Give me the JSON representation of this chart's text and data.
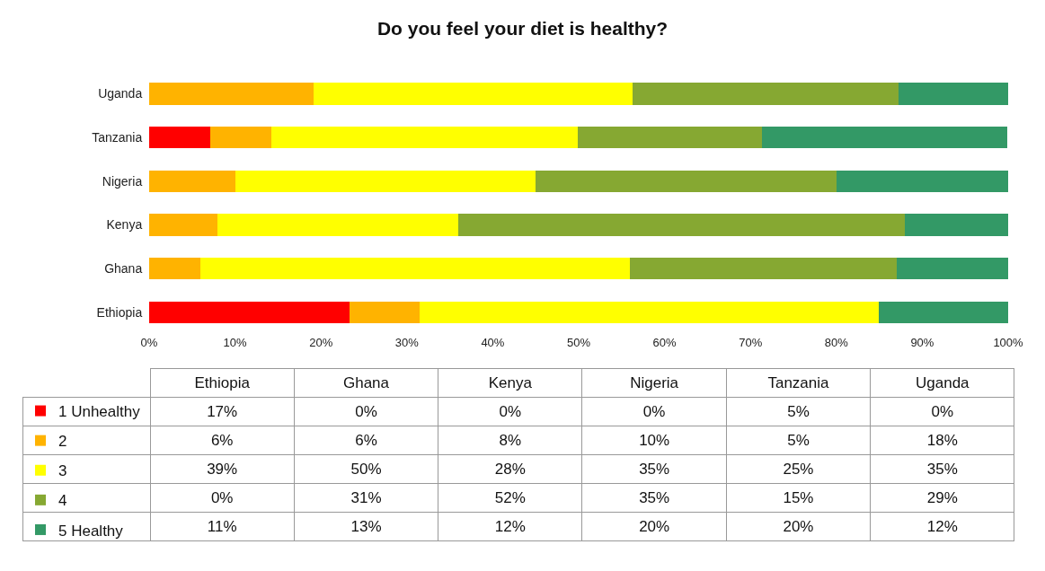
{
  "chart_data": [
    {
      "type": "bar",
      "orientation": "horizontal",
      "stacked": true,
      "title": "Do you feel your diet is healthy?",
      "categories": [
        "Uganda",
        "Tanzania",
        "Nigeria",
        "Kenya",
        "Ghana",
        "Ethiopia"
      ],
      "series": [
        {
          "name": "1 Unhealthy",
          "color": "#ff0000",
          "values": [
            0,
            7.1,
            0,
            0,
            0,
            23.3
          ]
        },
        {
          "name": "2",
          "color": "#ffb300",
          "values": [
            19.1,
            7.1,
            10,
            8,
            6,
            8.2
          ]
        },
        {
          "name": "3",
          "color": "#ffff00",
          "values": [
            37.2,
            35.7,
            35,
            28,
            50,
            53.4
          ]
        },
        {
          "name": "4",
          "color": "#86a832",
          "values": [
            30.9,
            21.4,
            35,
            52,
            31,
            0
          ]
        },
        {
          "name": "5 Healthy",
          "color": "#339966",
          "values": [
            12.8,
            28.6,
            20,
            12,
            13,
            15.1
          ]
        }
      ],
      "xlim": [
        0,
        100
      ],
      "xticks": [
        {
          "value": 0,
          "label": "0%"
        },
        {
          "value": 10,
          "label": "10%"
        },
        {
          "value": 20,
          "label": "20%"
        },
        {
          "value": 30,
          "label": "30%"
        },
        {
          "value": 40,
          "label": "40%"
        },
        {
          "value": 50,
          "label": "50%"
        },
        {
          "value": 60,
          "label": "60%"
        },
        {
          "value": 70,
          "label": "70%"
        },
        {
          "value": 80,
          "label": "80%"
        },
        {
          "value": 90,
          "label": "90%"
        },
        {
          "value": 100,
          "label": "100%"
        }
      ],
      "legend": "bottom"
    },
    {
      "type": "other",
      "categories": [
        "Ethiopia",
        "Ghana",
        "Kenya",
        "Nigeria",
        "Tanzania",
        "Uganda"
      ],
      "annotations": [
        "17%",
        "0%",
        "0%",
        "0%",
        "5%",
        "0%",
        "6%",
        "6%",
        "8%",
        "10%",
        "5%",
        "18%",
        "39%",
        "50%",
        "28%",
        "35%",
        "25%",
        "35%",
        "0%",
        "31%",
        "52%",
        "35%",
        "15%",
        "29%",
        "11%",
        "13%",
        "12%",
        "20%",
        "20%",
        "12%"
      ]
    }
  ]
}
